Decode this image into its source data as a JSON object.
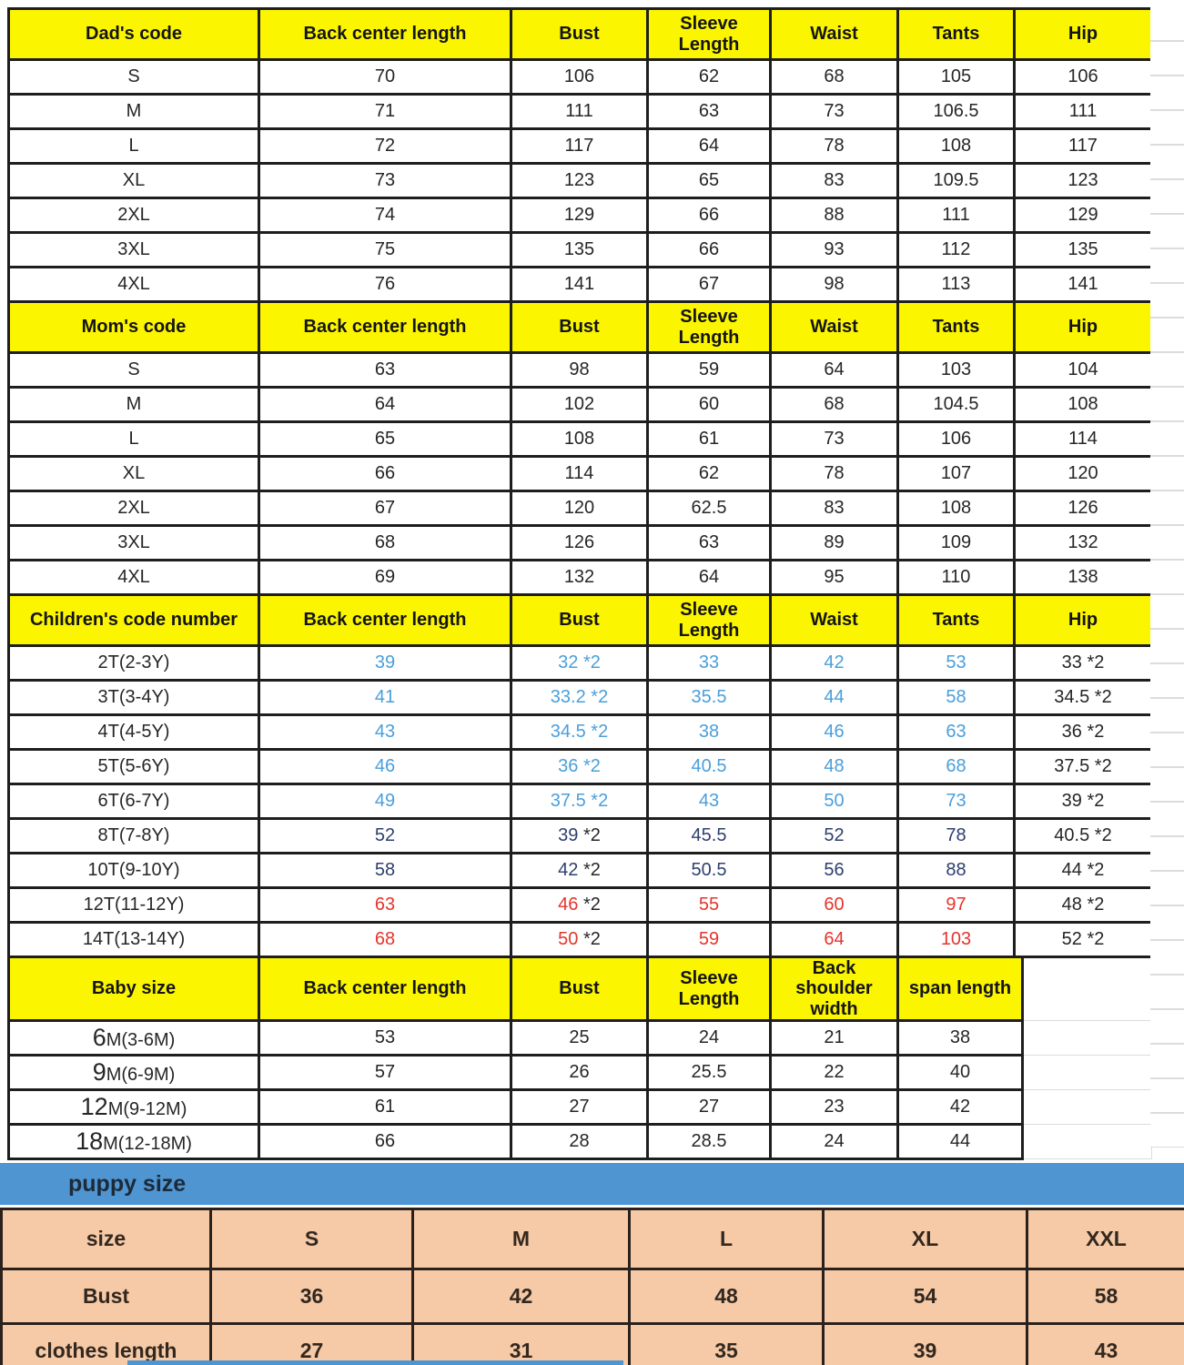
{
  "colors": {
    "header_yellow": "#FBF500",
    "banner_blue": "#4E95D2",
    "puppy_peach": "#F6CAA7",
    "border_dark": "#1E1E1E",
    "puppy_border": "#2A211C",
    "text_default": "#262626",
    "text_blue": "#4A9FDB",
    "text_navy": "#2E3F6E",
    "text_red": "#E5342C",
    "gridline_faint": "#DCDCDC",
    "banner_text": "#1D2A38",
    "puppy_text": "#33281F"
  },
  "sections": [
    {
      "name": "dad",
      "headers": [
        "Dad's code",
        "Back center length",
        "Bust",
        "Sleeve\nLength",
        "Waist",
        "Tants",
        "Hip"
      ],
      "rows": [
        {
          "label": "S",
          "tone": "black",
          "cells": [
            {
              "t": "70"
            },
            {
              "t": "106"
            },
            {
              "t": "62"
            },
            {
              "t": "68"
            },
            {
              "t": "105"
            },
            {
              "t": "106"
            }
          ]
        },
        {
          "label": "M",
          "tone": "black",
          "cells": [
            {
              "t": "71"
            },
            {
              "t": "111"
            },
            {
              "t": "63"
            },
            {
              "t": "73"
            },
            {
              "t": "106.5"
            },
            {
              "t": "111"
            }
          ]
        },
        {
          "label": "L",
          "tone": "black",
          "cells": [
            {
              "t": "72"
            },
            {
              "t": "117"
            },
            {
              "t": "64"
            },
            {
              "t": "78"
            },
            {
              "t": "108"
            },
            {
              "t": "117"
            }
          ]
        },
        {
          "label": "XL",
          "tone": "black",
          "cells": [
            {
              "t": "73"
            },
            {
              "t": "123"
            },
            {
              "t": "65"
            },
            {
              "t": "83"
            },
            {
              "t": "109.5"
            },
            {
              "t": "123"
            }
          ]
        },
        {
          "label": "2XL",
          "tone": "black",
          "cells": [
            {
              "t": "74"
            },
            {
              "t": "129"
            },
            {
              "t": "66"
            },
            {
              "t": "88"
            },
            {
              "t": "111"
            },
            {
              "t": "129"
            }
          ]
        },
        {
          "label": "3XL",
          "tone": "black",
          "cells": [
            {
              "t": "75"
            },
            {
              "t": "135"
            },
            {
              "t": "66"
            },
            {
              "t": "93"
            },
            {
              "t": "112"
            },
            {
              "t": "135"
            }
          ]
        },
        {
          "label": "4XL",
          "tone": "black",
          "cells": [
            {
              "t": "76"
            },
            {
              "t": "141"
            },
            {
              "t": "67"
            },
            {
              "t": "98"
            },
            {
              "t": "113"
            },
            {
              "t": "141"
            }
          ]
        }
      ]
    },
    {
      "name": "mom",
      "headers": [
        "Mom's code",
        "Back center length",
        "Bust",
        "Sleeve\nLength",
        "Waist",
        "Tants",
        "Hip"
      ],
      "rows": [
        {
          "label": "S",
          "tone": "black",
          "cells": [
            {
              "t": "63"
            },
            {
              "t": "98"
            },
            {
              "t": "59"
            },
            {
              "t": "64"
            },
            {
              "t": "103"
            },
            {
              "t": "104"
            }
          ]
        },
        {
          "label": "M",
          "tone": "black",
          "cells": [
            {
              "t": "64"
            },
            {
              "t": "102"
            },
            {
              "t": "60"
            },
            {
              "t": "68"
            },
            {
              "t": "104.5"
            },
            {
              "t": "108"
            }
          ]
        },
        {
          "label": "L",
          "tone": "black",
          "cells": [
            {
              "t": "65"
            },
            {
              "t": "108"
            },
            {
              "t": "61"
            },
            {
              "t": "73"
            },
            {
              "t": "106"
            },
            {
              "t": "114"
            }
          ]
        },
        {
          "label": "XL",
          "tone": "black",
          "cells": [
            {
              "t": "66"
            },
            {
              "t": "114"
            },
            {
              "t": "62"
            },
            {
              "t": "78"
            },
            {
              "t": "107"
            },
            {
              "t": "120"
            }
          ]
        },
        {
          "label": "2XL",
          "tone": "black",
          "cells": [
            {
              "t": "67"
            },
            {
              "t": "120"
            },
            {
              "t": "62.5"
            },
            {
              "t": "83"
            },
            {
              "t": "108"
            },
            {
              "t": "126"
            }
          ]
        },
        {
          "label": "3XL",
          "tone": "black",
          "cells": [
            {
              "t": "68"
            },
            {
              "t": "126"
            },
            {
              "t": "63"
            },
            {
              "t": "89"
            },
            {
              "t": "109"
            },
            {
              "t": "132"
            }
          ]
        },
        {
          "label": "4XL",
          "tone": "black",
          "cells": [
            {
              "t": "69"
            },
            {
              "t": "132"
            },
            {
              "t": "64"
            },
            {
              "t": "95"
            },
            {
              "t": "110"
            },
            {
              "t": "138"
            }
          ]
        }
      ]
    },
    {
      "name": "children",
      "headers": [
        "Children's code number",
        "Back center length",
        "Bust",
        "Sleeve\nLength",
        "Waist",
        "Tants",
        "Hip"
      ],
      "rows": [
        {
          "label": "2T(2-3Y)",
          "tone": "blue",
          "cells": [
            {
              "t": "39"
            },
            {
              "t": "32",
              "m": "*2",
              "mBlack": false
            },
            {
              "t": "33"
            },
            {
              "t": "42"
            },
            {
              "t": "53"
            },
            {
              "t": "33",
              "m": "*2",
              "black": true,
              "mBlack": true
            }
          ]
        },
        {
          "label": "3T(3-4Y)",
          "tone": "blue",
          "cells": [
            {
              "t": "41"
            },
            {
              "t": "33.2",
              "m": "*2",
              "mBlack": false
            },
            {
              "t": "35.5"
            },
            {
              "t": "44"
            },
            {
              "t": "58"
            },
            {
              "t": "34.5",
              "m": "*2",
              "black": true,
              "mBlack": true
            }
          ]
        },
        {
          "label": "4T(4-5Y)",
          "tone": "blue",
          "cells": [
            {
              "t": "43"
            },
            {
              "t": "34.5",
              "m": "*2",
              "mBlack": false
            },
            {
              "t": "38"
            },
            {
              "t": "46"
            },
            {
              "t": "63"
            },
            {
              "t": "36",
              "m": "*2",
              "black": true,
              "mBlack": true
            }
          ]
        },
        {
          "label": "5T(5-6Y)",
          "tone": "blue",
          "cells": [
            {
              "t": "46"
            },
            {
              "t": "36",
              "m": "*2",
              "mBlack": false
            },
            {
              "t": "40.5"
            },
            {
              "t": "48"
            },
            {
              "t": "68"
            },
            {
              "t": "37.5",
              "m": "*2",
              "black": true,
              "mBlack": true
            }
          ]
        },
        {
          "label": "6T(6-7Y)",
          "tone": "blue",
          "cells": [
            {
              "t": "49"
            },
            {
              "t": "37.5",
              "m": "*2",
              "mBlack": false
            },
            {
              "t": "43"
            },
            {
              "t": "50"
            },
            {
              "t": "73"
            },
            {
              "t": "39",
              "m": "*2",
              "black": true,
              "mBlack": true
            }
          ]
        },
        {
          "label": "8T(7-8Y)",
          "tone": "navy",
          "cells": [
            {
              "t": "52"
            },
            {
              "t": "39",
              "m": "*2",
              "mBlack": true
            },
            {
              "t": "45.5"
            },
            {
              "t": "52"
            },
            {
              "t": "78"
            },
            {
              "t": "40.5",
              "m": "*2",
              "black": true,
              "mBlack": true
            }
          ]
        },
        {
          "label": "10T(9-10Y)",
          "tone": "navy",
          "cells": [
            {
              "t": "58"
            },
            {
              "t": "42",
              "m": "*2",
              "mBlack": true
            },
            {
              "t": "50.5"
            },
            {
              "t": "56"
            },
            {
              "t": "88"
            },
            {
              "t": "44",
              "m": "*2",
              "black": true,
              "mBlack": true
            }
          ]
        },
        {
          "label": "12T(11-12Y)",
          "tone": "red",
          "cells": [
            {
              "t": "63"
            },
            {
              "t": "46",
              "m": "*2",
              "mBlack": true
            },
            {
              "t": "55"
            },
            {
              "t": "60"
            },
            {
              "t": "97"
            },
            {
              "t": "48",
              "m": "*2",
              "black": true,
              "mBlack": true
            }
          ]
        },
        {
          "label": "14T(13-14Y)",
          "tone": "red",
          "cells": [
            {
              "t": "68"
            },
            {
              "t": "50",
              "m": "*2",
              "mBlack": true
            },
            {
              "t": "59"
            },
            {
              "t": "64"
            },
            {
              "t": "103"
            },
            {
              "t": "52",
              "m": "*2",
              "black": true,
              "mBlack": true
            }
          ]
        }
      ]
    },
    {
      "name": "baby",
      "headers": [
        "Baby size",
        "Back center length",
        "Bust",
        "Sleeve\nLength",
        "Back\nshoulder width",
        "span length"
      ],
      "rows": [
        {
          "label": "6M(3-6M)",
          "tone": "black",
          "cells": [
            {
              "t": "53"
            },
            {
              "t": "25"
            },
            {
              "t": "24"
            },
            {
              "t": "21"
            },
            {
              "t": "38"
            }
          ]
        },
        {
          "label": "9M(6-9M)",
          "tone": "black",
          "cells": [
            {
              "t": "57"
            },
            {
              "t": "26"
            },
            {
              "t": "25.5"
            },
            {
              "t": "22"
            },
            {
              "t": "40"
            }
          ]
        },
        {
          "label": "12M(9-12M)",
          "tone": "black",
          "cells": [
            {
              "t": "61"
            },
            {
              "t": "27"
            },
            {
              "t": "27"
            },
            {
              "t": "23"
            },
            {
              "t": "42"
            }
          ]
        },
        {
          "label": "18M(12-18M)",
          "tone": "black",
          "cells": [
            {
              "t": "66"
            },
            {
              "t": "28"
            },
            {
              "t": "28.5"
            },
            {
              "t": "24"
            },
            {
              "t": "44"
            }
          ]
        }
      ]
    }
  ],
  "puppy": {
    "banner": "puppy size",
    "size_label": "size",
    "columns": [
      "S",
      "M",
      "L",
      "XL",
      "XXL"
    ],
    "rows": [
      {
        "label": "Bust",
        "values": [
          "36",
          "42",
          "48",
          "54",
          "58"
        ]
      },
      {
        "label": "clothes length",
        "values": [
          "27",
          "31",
          "35",
          "39",
          "43"
        ]
      }
    ]
  }
}
